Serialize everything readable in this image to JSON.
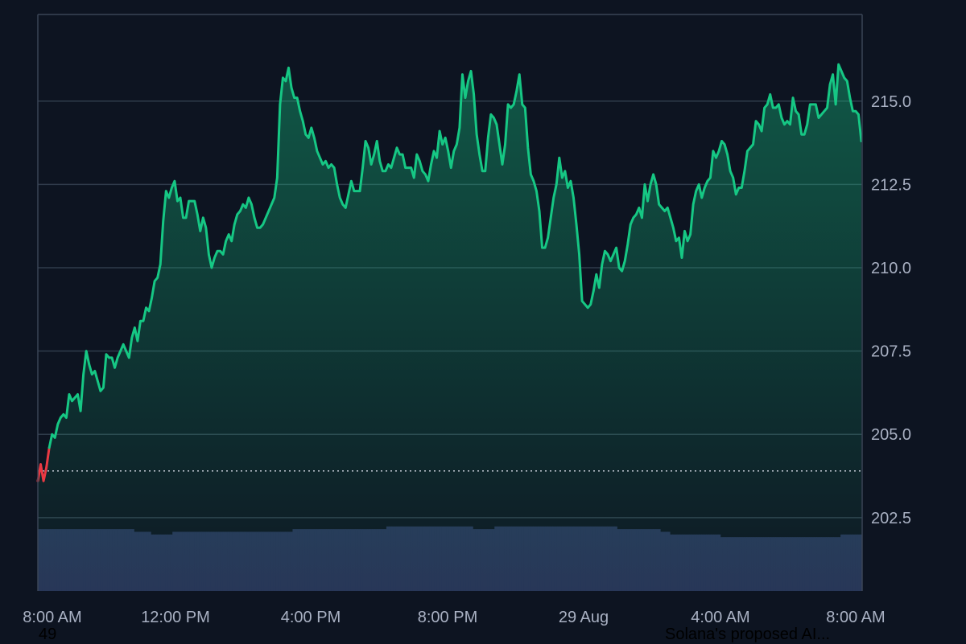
{
  "chart_data": {
    "type": "area",
    "baseline_value": 203.9,
    "ylim": [
      200.3,
      217.6
    ],
    "y_ticks": [
      "202.5",
      "205.0",
      "207.5",
      "210.0",
      "212.5",
      "215.0"
    ],
    "x_ticks": [
      "8:00 AM",
      "12:00 PM",
      "4:00 PM",
      "8:00 PM",
      "29 Aug",
      "4:00 AM",
      "8:00 AM"
    ],
    "grid": true,
    "colors": {
      "line_up": "#16c784",
      "line_down": "#ea3943",
      "volume": "#283457",
      "grid": "#2f3b4b",
      "background": "#0d1421"
    },
    "series": [
      {
        "values": [
          203.6,
          204.1,
          203.6,
          204.0,
          204.6,
          205.0,
          204.9,
          205.3,
          205.5,
          205.6,
          205.5,
          206.2,
          206.0,
          206.1,
          206.2,
          205.7,
          206.8,
          207.5,
          207.1,
          206.8,
          206.9,
          206.6,
          206.3,
          206.4,
          207.4,
          207.3,
          207.3,
          207.0,
          207.3,
          207.5,
          207.7,
          207.5,
          207.3,
          207.9,
          208.2,
          207.8,
          208.4,
          208.4,
          208.8,
          208.7,
          209.1,
          209.6,
          209.7,
          210.1,
          211.4,
          212.3,
          212.1,
          212.4,
          212.6,
          212.0,
          212.1,
          211.5,
          211.5,
          212.0,
          212.0,
          212.0,
          211.6,
          211.1,
          211.5,
          211.2,
          210.4,
          210.0,
          210.3,
          210.5,
          210.5,
          210.4,
          210.8,
          211.0,
          210.8,
          211.3,
          211.6,
          211.7,
          211.9,
          211.8,
          212.1,
          211.9,
          211.5,
          211.2,
          211.2,
          211.3,
          211.5,
          211.7,
          211.9,
          212.1,
          212.7,
          214.9,
          215.7,
          215.6,
          216.0,
          215.4,
          215.1,
          215.1,
          214.7,
          214.4,
          214.0,
          213.9,
          214.2,
          213.9,
          213.5,
          213.3,
          213.1,
          213.2,
          213.0,
          213.1,
          213.0,
          212.5,
          212.1,
          211.9,
          211.8,
          212.2,
          212.6,
          212.3,
          212.3,
          212.3,
          213.0,
          213.8,
          213.6,
          213.1,
          213.4,
          213.8,
          213.2,
          212.9,
          212.9,
          213.1,
          213.0,
          213.3,
          213.6,
          213.4,
          213.4,
          213.0,
          213.0,
          213.0,
          212.7,
          213.4,
          213.2,
          212.9,
          212.8,
          212.6,
          213.1,
          213.5,
          213.3,
          214.1,
          213.7,
          213.9,
          213.5,
          213.0,
          213.5,
          213.7,
          214.2,
          215.8,
          215.1,
          215.6,
          215.9,
          215.2,
          214.0,
          213.4,
          212.9,
          212.9,
          213.9,
          214.6,
          214.5,
          214.3,
          213.7,
          213.1,
          213.7,
          214.9,
          214.8,
          214.9,
          215.3,
          215.8,
          214.9,
          214.8,
          213.6,
          212.8,
          212.6,
          212.3,
          211.7,
          210.6,
          210.6,
          210.9,
          211.5,
          212.1,
          212.5,
          213.3,
          212.7,
          212.9,
          212.4,
          212.6,
          212.1,
          211.3,
          210.4,
          209.0,
          208.9,
          208.8,
          208.9,
          209.3,
          209.8,
          209.4,
          210.1,
          210.5,
          210.4,
          210.2,
          210.4,
          210.6,
          210.0,
          209.9,
          210.2,
          210.7,
          211.3,
          211.5,
          211.6,
          211.8,
          211.5,
          212.5,
          212.0,
          212.5,
          212.8,
          212.5,
          211.9,
          211.8,
          211.7,
          211.8,
          211.5,
          211.2,
          210.8,
          210.9,
          210.3,
          211.1,
          210.8,
          211.0,
          211.9,
          212.3,
          212.5,
          212.1,
          212.4,
          212.6,
          212.7,
          213.5,
          213.3,
          213.5,
          213.8,
          213.7,
          213.4,
          212.9,
          212.7,
          212.2,
          212.4,
          212.4,
          212.9,
          213.5,
          213.6,
          213.7,
          214.4,
          214.3,
          214.1,
          214.8,
          214.9,
          215.2,
          214.8,
          214.8,
          214.9,
          214.5,
          214.3,
          214.4,
          214.3,
          215.1,
          214.7,
          214.6,
          214.0,
          214.0,
          214.3,
          214.9,
          214.9,
          214.9,
          214.5,
          214.6,
          214.7,
          214.8,
          215.5,
          215.8,
          214.9,
          216.1,
          215.9,
          215.7,
          215.6,
          215.1,
          214.7,
          214.7,
          214.6,
          213.8
        ]
      }
    ],
    "volume_bars": [
      2.3,
      2.3,
      2.3,
      2.3,
      2.3,
      2.3,
      2.3,
      2.3,
      2.3,
      2.3,
      2.3,
      2.3,
      2.3,
      2.3,
      2.3,
      2.3,
      2.3,
      2.3,
      2.3,
      2.3,
      2.3,
      2.3,
      2.3,
      2.3,
      2.3,
      2.3,
      2.3,
      2.3,
      2.3,
      2.3,
      2.3,
      2.3,
      2.3,
      2.3,
      2.3,
      2.3,
      2.3,
      2.3,
      2.3,
      2.3,
      2.2,
      2.2,
      2.2,
      2.2,
      2.2,
      2.2,
      2.2,
      2.1,
      2.1,
      2.1,
      2.1,
      2.1,
      2.1,
      2.1,
      2.1,
      2.1,
      2.2,
      2.2,
      2.2,
      2.2,
      2.2,
      2.2,
      2.2,
      2.2,
      2.2,
      2.2,
      2.2,
      2.2,
      2.2,
      2.2,
      2.2,
      2.2,
      2.2,
      2.2,
      2.2,
      2.2,
      2.2,
      2.2,
      2.2,
      2.2,
      2.2,
      2.2,
      2.2,
      2.2,
      2.2,
      2.2,
      2.2,
      2.2,
      2.2,
      2.2,
      2.2,
      2.2,
      2.2,
      2.2,
      2.2,
      2.2,
      2.2,
      2.2,
      2.2,
      2.2,
      2.2,
      2.2,
      2.2,
      2.2,
      2.2,
      2.2,
      2.3,
      2.3,
      2.3,
      2.3,
      2.3,
      2.3,
      2.3,
      2.3,
      2.3,
      2.3,
      2.3,
      2.3,
      2.3,
      2.3,
      2.3,
      2.3,
      2.3,
      2.3,
      2.3,
      2.3,
      2.3,
      2.3,
      2.3,
      2.3,
      2.3,
      2.3,
      2.3,
      2.3,
      2.3,
      2.3,
      2.3,
      2.3,
      2.3,
      2.3,
      2.3,
      2.3,
      2.3,
      2.3,
      2.3,
      2.4,
      2.4,
      2.4,
      2.4,
      2.4,
      2.4,
      2.4,
      2.4,
      2.4,
      2.4,
      2.4,
      2.4,
      2.4,
      2.4,
      2.4,
      2.4,
      2.4,
      2.4,
      2.4,
      2.4,
      2.4,
      2.4,
      2.4,
      2.4,
      2.4,
      2.4,
      2.4,
      2.4,
      2.4,
      2.4,
      2.4,
      2.4,
      2.4,
      2.4,
      2.4,
      2.4,
      2.3,
      2.3,
      2.3,
      2.3,
      2.3,
      2.3,
      2.3,
      2.3,
      2.3,
      2.4,
      2.4,
      2.4,
      2.4,
      2.4,
      2.4,
      2.4,
      2.4,
      2.4,
      2.4,
      2.4,
      2.4,
      2.4,
      2.4,
      2.4,
      2.4,
      2.4,
      2.4,
      2.4,
      2.4,
      2.4,
      2.4,
      2.4,
      2.4,
      2.4,
      2.4,
      2.4,
      2.4,
      2.4,
      2.4,
      2.4,
      2.4,
      2.4,
      2.4,
      2.4,
      2.4,
      2.4,
      2.4,
      2.4,
      2.4,
      2.4,
      2.4,
      2.4,
      2.4,
      2.4,
      2.4,
      2.4,
      2.4,
      2.4,
      2.4,
      2.4,
      2.3,
      2.3,
      2.3,
      2.3,
      2.3,
      2.3,
      2.3,
      2.3,
      2.3,
      2.3,
      2.3,
      2.3,
      2.3,
      2.3,
      2.3,
      2.3,
      2.3,
      2.3,
      2.2,
      2.2,
      2.2,
      2.2,
      2.1,
      2.1,
      2.1,
      2.1,
      2.1,
      2.1,
      2.1,
      2.1,
      2.1,
      2.1,
      2.1,
      2.1,
      2.1,
      2.1,
      2.1,
      2.1,
      2.1,
      2.1,
      2.1,
      2.1,
      2.1,
      2.0,
      2.0,
      2.0,
      2.0,
      2.0,
      2.0,
      2.0,
      2.0,
      2.0,
      2.0,
      2.0,
      2.0,
      2.0,
      2.0,
      2.0,
      2.0,
      2.0,
      2.0,
      2.0,
      2.0,
      2.0,
      2.0,
      2.0,
      2.0,
      2.0,
      2.0,
      2.0,
      2.0,
      2.0,
      2.0,
      2.0,
      2.0,
      2.0,
      2.0,
      2.0,
      2.0,
      2.0,
      2.0,
      2.0,
      2.0,
      2.0,
      2.0,
      2.0,
      2.0,
      2.0,
      2.0,
      2.0,
      2.0,
      2.0,
      2.0,
      2.1,
      2.1,
      2.1,
      2.1,
      2.1,
      2.1,
      2.1,
      2.1,
      2.1
    ]
  },
  "footer": {
    "left_text": "49",
    "right_text": "Solana's proposed AI..."
  }
}
